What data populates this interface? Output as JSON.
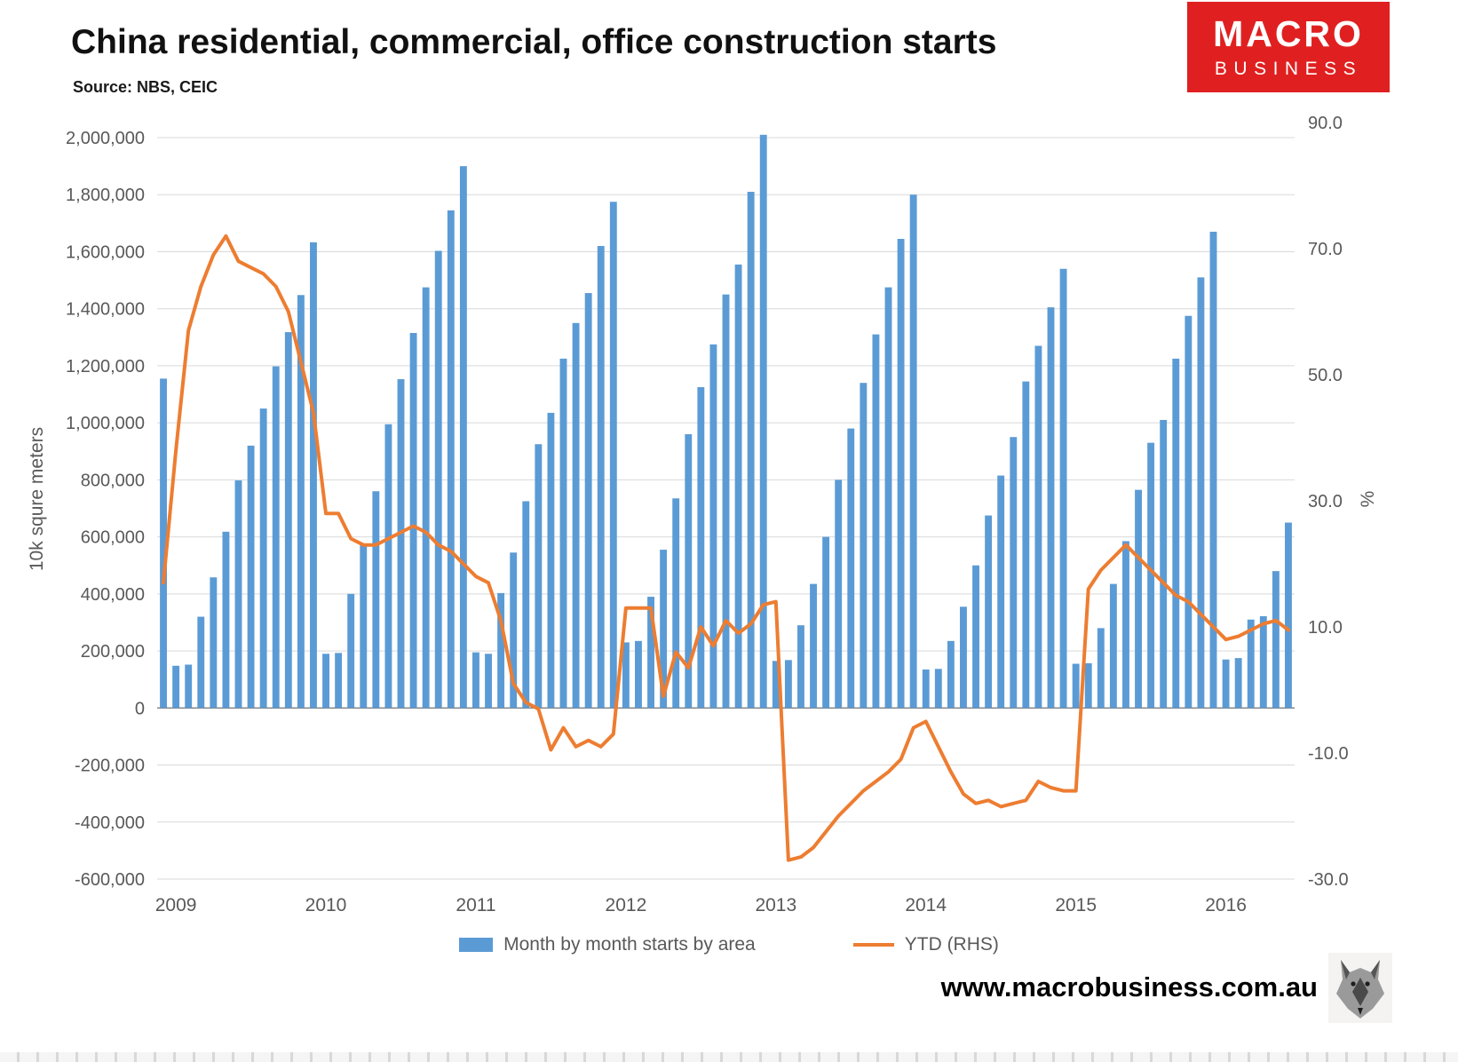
{
  "header": {
    "title": "China residential, commercial, office construction starts",
    "source": "Source: NBS, CEIC"
  },
  "logo": {
    "line1": "MACRO",
    "line2": "BUSINESS",
    "bg_color": "#e02020"
  },
  "footer": {
    "website": "www.macrobusiness.com.au"
  },
  "chart_data": {
    "type": "combo bar+line",
    "grid": true,
    "legend_position": "bottom",
    "months": [
      "2008-12",
      "2009-01",
      "2009-02",
      "2009-03",
      "2009-04",
      "2009-05",
      "2009-06",
      "2009-07",
      "2009-08",
      "2009-09",
      "2009-10",
      "2009-11",
      "2009-12",
      "2010-01",
      "2010-02",
      "2010-03",
      "2010-04",
      "2010-05",
      "2010-06",
      "2010-07",
      "2010-08",
      "2010-09",
      "2010-10",
      "2010-11",
      "2010-12",
      "2011-01",
      "2011-02",
      "2011-03",
      "2011-04",
      "2011-05",
      "2011-06",
      "2011-07",
      "2011-08",
      "2011-09",
      "2011-10",
      "2011-11",
      "2011-12",
      "2012-01",
      "2012-02",
      "2012-03",
      "2012-04",
      "2012-05",
      "2012-06",
      "2012-07",
      "2012-08",
      "2012-09",
      "2012-10",
      "2012-11",
      "2012-12",
      "2013-01",
      "2013-02",
      "2013-03",
      "2013-04",
      "2013-05",
      "2013-06",
      "2013-07",
      "2013-08",
      "2013-09",
      "2013-10",
      "2013-11",
      "2013-12",
      "2014-01",
      "2014-02",
      "2014-03",
      "2014-04",
      "2014-05",
      "2014-06",
      "2014-07",
      "2014-08",
      "2014-09",
      "2014-10",
      "2014-11",
      "2014-12",
      "2015-01",
      "2015-02",
      "2015-03",
      "2015-04",
      "2015-05",
      "2015-06",
      "2015-07",
      "2015-08",
      "2015-09",
      "2015-10",
      "2015-11",
      "2015-12",
      "2016-01",
      "2016-02",
      "2016-03",
      "2016-04",
      "2016-05",
      "2016-06"
    ],
    "series": [
      {
        "name": "Month by month starts by area",
        "type": "bar",
        "axis": "left",
        "color": "#5B9BD5",
        "values": [
          1155000,
          148000,
          152000,
          320000,
          458000,
          618000,
          798000,
          920000,
          1050000,
          1198000,
          1318000,
          1448000,
          1633000,
          190000,
          193000,
          400000,
          570000,
          760000,
          995000,
          1153000,
          1315000,
          1475000,
          1603000,
          1745000,
          1900000,
          195000,
          190000,
          403000,
          545000,
          725000,
          925000,
          1035000,
          1225000,
          1350000,
          1455000,
          1620000,
          1775000,
          230000,
          235000,
          390000,
          555000,
          735000,
          960000,
          1125000,
          1275000,
          1450000,
          1555000,
          1810000,
          2010000,
          165000,
          168000,
          290000,
          435000,
          600000,
          800000,
          980000,
          1140000,
          1310000,
          1475000,
          1645000,
          1800000,
          135000,
          137000,
          235000,
          355000,
          500000,
          675000,
          815000,
          950000,
          1145000,
          1270000,
          1405000,
          1540000,
          155000,
          157000,
          280000,
          435000,
          585000,
          765000,
          930000,
          1010000,
          1225000,
          1375000,
          1510000,
          1670000,
          170000,
          175000,
          310000,
          322000,
          480000,
          650000
        ]
      },
      {
        "name": "YTD (RHS)",
        "type": "line",
        "axis": "right",
        "color": "#ED7D31",
        "values": [
          17,
          38,
          57,
          64,
          69,
          72,
          68,
          67,
          66,
          64,
          60,
          52,
          44,
          28,
          28,
          24,
          23,
          23,
          24,
          25,
          26,
          25,
          23,
          22,
          20,
          18,
          17,
          11,
          1,
          -2,
          -3,
          -9.5,
          -6,
          -9,
          -8,
          -9,
          -7,
          13,
          13,
          13,
          -1,
          6,
          3.5,
          10,
          7,
          11,
          9,
          10.5,
          13.5,
          14,
          -27,
          -26.5,
          -25,
          -22.5,
          -20,
          -18,
          -16,
          -14.5,
          -13,
          -11,
          -6,
          -5,
          -9,
          -13,
          -16.5,
          -18,
          -17.5,
          -18.5,
          -18,
          -17.5,
          -14.5,
          -15.5,
          -16,
          -16,
          16,
          19,
          21,
          23,
          21,
          19,
          17,
          15,
          14,
          12,
          10,
          8,
          8.5,
          9.5,
          10.5,
          11,
          9.5
        ]
      }
    ],
    "x_axis": {
      "labels": [
        "2009",
        "2010",
        "2011",
        "2012",
        "2013",
        "2014",
        "2015",
        "2016"
      ]
    },
    "left_axis": {
      "title": "10k squre meters",
      "min": -600000,
      "max": 2000000,
      "step": 200000,
      "tick_values": [
        2000000,
        1800000,
        1600000,
        1400000,
        1200000,
        1000000,
        800000,
        600000,
        400000,
        200000,
        0,
        -200000,
        -400000,
        -600000
      ],
      "tick_labels": [
        "2,000,000",
        "1,800,000",
        "1,600,000",
        "1,400,000",
        "1,200,000",
        "1,000,000",
        "800,000",
        "600,000",
        "400,000",
        "200,000",
        "0",
        "-200,000",
        "-400,000",
        "-600,000"
      ]
    },
    "right_axis": {
      "title": "%",
      "min": -30,
      "max": 90,
      "tick_values": [
        90,
        70,
        50,
        30,
        10,
        -10,
        -30
      ],
      "tick_labels": [
        "90.0",
        "70.0",
        "50.0",
        "30.0",
        "10.0",
        "-10.0",
        "-30.0"
      ]
    },
    "colors": {
      "grid": "#d9d9d9",
      "axis_text": "#595959",
      "zero_line": "#7f7f7f"
    }
  }
}
